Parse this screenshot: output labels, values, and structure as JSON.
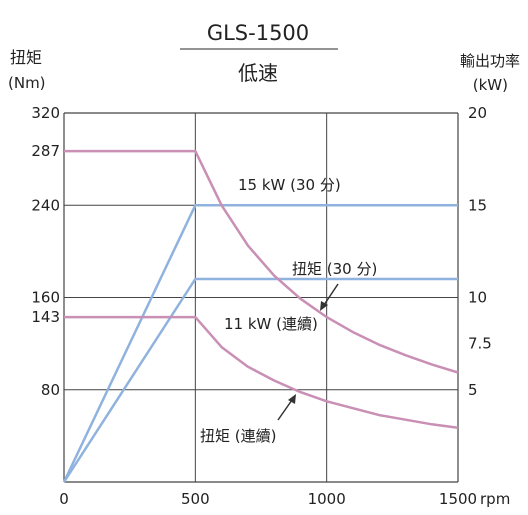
{
  "chart_data": {
    "type": "line",
    "title": "GLS-1500",
    "subtitle": "低速",
    "y_left": {
      "label_line1": "扭矩",
      "label_line2": "(Nm)",
      "ylim": [
        0,
        320
      ],
      "ticks": [
        0,
        80,
        143,
        160,
        240,
        287,
        320
      ]
    },
    "y_right": {
      "label_line1": "輸出功率",
      "label_line2": "(kW)",
      "ylim": [
        0,
        20
      ],
      "ticks": [
        5,
        7.5,
        10,
        15,
        20
      ]
    },
    "x": {
      "unit": "rpm",
      "xlim": [
        0,
        1500
      ],
      "ticks": [
        0,
        500,
        1000,
        1500
      ]
    },
    "grid": true,
    "series": [
      {
        "name": "15 kW (30 分)",
        "axis": "right",
        "color": "#8fb3de",
        "points": [
          [
            0,
            0
          ],
          [
            500,
            15
          ],
          [
            1500,
            15
          ]
        ]
      },
      {
        "name": "11 kW (連續)",
        "axis": "right",
        "color": "#8fb3de",
        "points": [
          [
            0,
            0
          ],
          [
            500,
            11
          ],
          [
            1500,
            11
          ]
        ]
      },
      {
        "name": "扭矩 (30 分)",
        "axis": "left",
        "color": "#c98fb4",
        "points": [
          [
            0,
            287
          ],
          [
            500,
            287
          ],
          [
            600,
            240
          ],
          [
            700,
            205
          ],
          [
            800,
            179
          ],
          [
            900,
            159
          ],
          [
            1000,
            143
          ],
          [
            1100,
            130
          ],
          [
            1200,
            119
          ],
          [
            1300,
            110
          ],
          [
            1400,
            102
          ],
          [
            1500,
            95
          ]
        ]
      },
      {
        "name": "扭矩 (連續)",
        "axis": "left",
        "color": "#c98fb4",
        "points": [
          [
            0,
            143
          ],
          [
            500,
            143
          ],
          [
            600,
            117
          ],
          [
            700,
            100
          ],
          [
            800,
            88
          ],
          [
            900,
            78
          ],
          [
            1000,
            70
          ],
          [
            1100,
            64
          ],
          [
            1200,
            58
          ],
          [
            1300,
            54
          ],
          [
            1400,
            50
          ],
          [
            1500,
            47
          ]
        ]
      }
    ],
    "annotations": {
      "power_30min": "15 kW (30 分)",
      "power_cont": "11 kW (連續)",
      "torque_30min": "扭矩 (30 分)",
      "torque_cont": "扭矩 (連續)"
    }
  }
}
